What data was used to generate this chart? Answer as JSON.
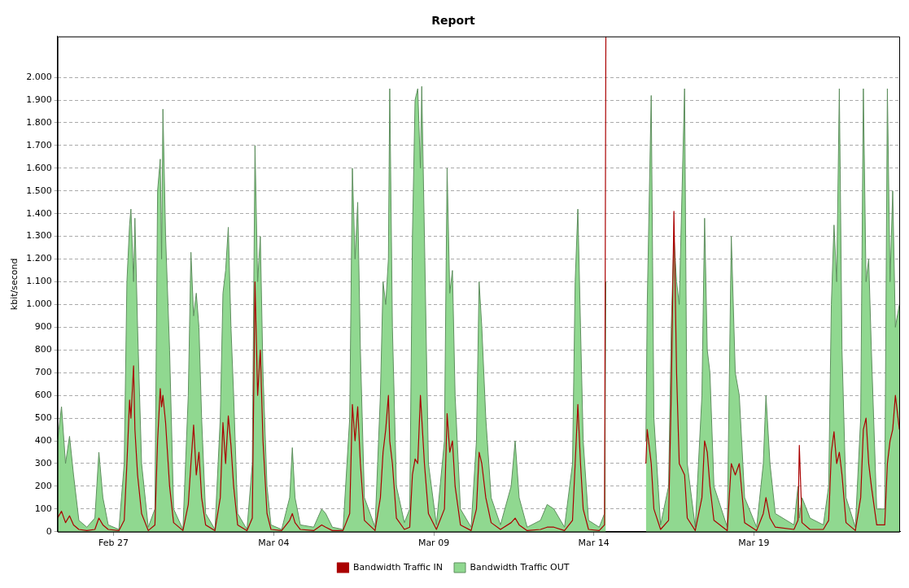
{
  "chart_data": {
    "type": "area",
    "title": "Report",
    "ylabel": "kbit/second",
    "x": [
      "--02-25T06:00",
      "--02-25T09:00",
      "--02-25T12:00",
      "--02-25T15:00",
      "--02-25T18:00",
      "--02-25T22:00",
      "--02-26T04:00",
      "--02-26T10:00",
      "--02-26T13:00",
      "--02-26T16:00",
      "--02-26T20:00",
      "--02-27T04:00",
      "--02-27T08:00",
      "--02-27T10:00",
      "--02-27T12:00",
      "--02-27T13:00",
      "--02-27T15:00",
      "--02-27T16:00",
      "--02-27T18:00",
      "--02-27T21:00",
      "--02-28T02:00",
      "--02-28T07:00",
      "--02-28T09:00",
      "--02-28T11:00",
      "--02-28T12:00",
      "--02-28T13:00",
      "--02-28T15:00",
      "--02-28T18:00",
      "--02-28T21:00",
      "--03-01T04:00",
      "--03-01T08:00",
      "--03-01T10:00",
      "--03-01T12:00",
      "--03-01T14:00",
      "--03-01T16:00",
      "--03-01T18:00",
      "--03-01T21:00",
      "--03-02T04:00",
      "--03-02T08:00",
      "--03-02T10:00",
      "--03-02T12:00",
      "--03-02T14:00",
      "--03-02T16:00",
      "--03-02T18:00",
      "--03-02T21:00",
      "--03-03T04:00",
      "--03-03T08:00",
      "--03-03T10:00",
      "--03-03T12:00",
      "--03-03T14:00",
      "--03-03T16:00",
      "--03-03T19:00",
      "--03-03T22:00",
      "--03-04T06:00",
      "--03-04T12:00",
      "--03-04T14:00",
      "--03-04T16:00",
      "--03-04T20:00",
      "--03-05T06:00",
      "--03-05T12:00",
      "--03-05T15:00",
      "--03-05T20:00",
      "--03-06T04:00",
      "--03-06T09:00",
      "--03-06T11:00",
      "--03-06T13:00",
      "--03-06T15:00",
      "--03-06T17:00",
      "--03-06T20:00",
      "--03-07T04:00",
      "--03-07T08:00",
      "--03-07T10:00",
      "--03-07T12:00",
      "--03-07T14:00",
      "--03-07T15:00",
      "--03-07T17:00",
      "--03-07T20:00",
      "--03-08T02:00",
      "--03-08T06:00",
      "--03-08T08:00",
      "--03-08T10:00",
      "--03-08T12:00",
      "--03-08T14:00",
      "--03-08T15:00",
      "--03-08T17:00",
      "--03-08T20:00",
      "--03-09T02:00",
      "--03-09T08:00",
      "--03-09T10:00",
      "--03-09T12:00",
      "--03-09T14:00",
      "--03-09T16:00",
      "--03-09T20:00",
      "--03-10T04:00",
      "--03-10T08:00",
      "--03-10T10:00",
      "--03-10T12:00",
      "--03-10T15:00",
      "--03-10T19:00",
      "--03-11T02:00",
      "--03-11T10:00",
      "--03-11T13:00",
      "--03-11T16:00",
      "--03-11T22:00",
      "--03-12T08:00",
      "--03-12T13:00",
      "--03-12T18:00",
      "--03-13T02:00",
      "--03-13T08:00",
      "--03-13T10:00",
      "--03-13T12:00",
      "--03-13T14:00",
      "--03-13T16:00",
      "--03-13T20:00",
      "--03-14T04:00",
      "--03-14T08:00",
      "--03-14T09:00",
      "--03-14T10:00",
      "--03-15T15:00",
      "--03-15T16:00",
      "--03-15T19:00",
      "--03-15T21:00",
      "--03-16T02:00",
      "--03-16T08:00",
      "--03-16T10:00",
      "--03-16T12:00",
      "--03-16T14:00",
      "--03-16T16:00",
      "--03-16T20:00",
      "--03-16T22:00",
      "--03-17T04:00",
      "--03-17T09:00",
      "--03-17T11:00",
      "--03-17T13:00",
      "--03-17T15:00",
      "--03-17T18:00",
      "--03-18T04:00",
      "--03-18T07:00",
      "--03-18T10:00",
      "--03-18T13:00",
      "--03-18T17:00",
      "--03-19T02:00",
      "--03-19T07:00",
      "--03-19T09:00",
      "--03-19T12:00",
      "--03-19T16:00",
      "--03-20T06:00",
      "--03-20T09:00",
      "--03-20T10:00",
      "--03-20T12:00",
      "--03-20T18:00",
      "--03-21T04:00",
      "--03-21T08:00",
      "--03-21T10:00",
      "--03-21T12:00",
      "--03-21T14:00",
      "--03-21T16:00",
      "--03-21T18:00",
      "--03-21T21:00",
      "--03-22T04:00",
      "--03-22T08:00",
      "--03-22T10:00",
      "--03-22T12:00",
      "--03-22T14:00",
      "--03-22T16:00",
      "--03-22T20:00",
      "--03-23T02:00",
      "--03-23T04:00",
      "--03-23T06:00",
      "--03-23T08:00",
      "--03-23T10:00",
      "--03-23T13:00"
    ],
    "series": [
      {
        "name": "Bandwidth Traffic IN",
        "type": "line",
        "color": "#aa0000",
        "values": [
          60,
          90,
          40,
          70,
          30,
          10,
          5,
          10,
          60,
          30,
          10,
          5,
          50,
          300,
          580,
          500,
          730,
          450,
          250,
          80,
          5,
          30,
          400,
          630,
          550,
          600,
          480,
          200,
          40,
          5,
          120,
          300,
          470,
          250,
          350,
          150,
          30,
          5,
          150,
          480,
          300,
          510,
          380,
          200,
          30,
          5,
          60,
          1100,
          600,
          800,
          400,
          80,
          10,
          5,
          50,
          80,
          40,
          10,
          5,
          30,
          20,
          5,
          5,
          80,
          560,
          400,
          550,
          300,
          50,
          5,
          150,
          350,
          450,
          600,
          400,
          300,
          60,
          10,
          20,
          250,
          320,
          300,
          600,
          500,
          300,
          80,
          10,
          100,
          520,
          350,
          400,
          200,
          30,
          5,
          100,
          350,
          300,
          150,
          40,
          10,
          40,
          60,
          30,
          5,
          10,
          20,
          20,
          5,
          50,
          300,
          560,
          300,
          100,
          10,
          5,
          30,
          2180,
          null,
          300,
          450,
          300,
          100,
          10,
          50,
          600,
          1410,
          700,
          300,
          250,
          60,
          5,
          150,
          400,
          350,
          200,
          50,
          5,
          300,
          250,
          300,
          40,
          5,
          80,
          150,
          60,
          20,
          10,
          50,
          380,
          40,
          10,
          10,
          50,
          350,
          440,
          300,
          350,
          250,
          40,
          5,
          150,
          450,
          500,
          300,
          200,
          30,
          30,
          300,
          400,
          450,
          600,
          450
        ]
      },
      {
        "name": "Bandwidth Traffic OUT",
        "color": "#90d890",
        "values": [
          400,
          550,
          300,
          420,
          250,
          50,
          20,
          60,
          350,
          150,
          30,
          10,
          300,
          1100,
          1350,
          1420,
          1100,
          1380,
          900,
          300,
          20,
          100,
          1500,
          1640,
          1200,
          1860,
          1300,
          800,
          100,
          10,
          600,
          1230,
          950,
          1050,
          900,
          500,
          80,
          10,
          500,
          1050,
          1150,
          1340,
          900,
          600,
          80,
          10,
          300,
          1700,
          1100,
          1300,
          700,
          200,
          30,
          10,
          150,
          370,
          150,
          30,
          20,
          100,
          80,
          20,
          10,
          500,
          1600,
          1200,
          1450,
          800,
          150,
          20,
          600,
          1100,
          1000,
          1200,
          1950,
          900,
          200,
          40,
          100,
          1300,
          1900,
          1950,
          1600,
          1960,
          1300,
          300,
          30,
          400,
          1600,
          1050,
          1150,
          600,
          100,
          20,
          400,
          1100,
          900,
          500,
          150,
          30,
          200,
          400,
          150,
          20,
          50,
          120,
          100,
          20,
          300,
          1100,
          1420,
          900,
          400,
          50,
          20,
          80,
          1100,
          null,
          400,
          1000,
          1920,
          500,
          30,
          200,
          900,
          1300,
          1100,
          1000,
          1950,
          300,
          20,
          600,
          1380,
          800,
          700,
          200,
          20,
          1300,
          700,
          600,
          150,
          20,
          300,
          600,
          300,
          80,
          30,
          200,
          60,
          150,
          60,
          30,
          200,
          1000,
          1350,
          1100,
          1950,
          800,
          150,
          20,
          500,
          1950,
          1100,
          1200,
          800,
          100,
          100,
          1950,
          1100,
          1500,
          900,
          1000
        ]
      }
    ],
    "xlim": [
      "--02-25T06:00",
      "--03-23T13:30"
    ],
    "xticks": [
      {
        "value": "--02-27",
        "label": "Feb 27"
      },
      {
        "value": "--03-04",
        "label": "Mar 04"
      },
      {
        "value": "--03-09",
        "label": "Mar 09"
      },
      {
        "value": "--03-14",
        "label": "Mar 14"
      },
      {
        "value": "--03-19",
        "label": "Mar 19"
      }
    ],
    "ylim": [
      0,
      2180
    ],
    "yticks": [
      0,
      100,
      200,
      300,
      400,
      500,
      600,
      700,
      800,
      900,
      {
        "value": 1000,
        "label": "1.000"
      },
      {
        "value": 1100,
        "label": "1.100"
      },
      {
        "value": 1200,
        "label": "1.200"
      },
      {
        "value": 1300,
        "label": "1.300"
      },
      {
        "value": 1400,
        "label": "1.400"
      },
      {
        "value": 1500,
        "label": "1.500"
      },
      {
        "value": 1600,
        "label": "1.600"
      },
      {
        "value": 1700,
        "label": "1.700"
      },
      {
        "value": 1800,
        "label": "1.800"
      },
      {
        "value": 1900,
        "label": "1.900"
      },
      {
        "value": 2000,
        "label": "2.000"
      }
    ],
    "grid": "y",
    "legend": "bottom"
  }
}
